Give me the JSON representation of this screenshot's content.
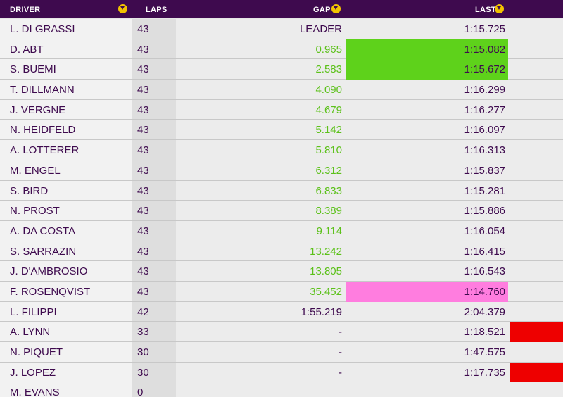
{
  "header": {
    "driver": "DRIVER",
    "laps": "LAPS",
    "gap": "GAP",
    "last": "LAST",
    "dropdown_icon": "chevron-down-circle-icon",
    "accent_color": "#3e0a4e",
    "icon_color": "#f2c300"
  },
  "colors": {
    "gap_green": "#5cc11a",
    "personal_best": "#5ed21b",
    "fastest_lap": "#ff7ddf",
    "retired": "#ee0000"
  },
  "rows": [
    {
      "driver": "L. DI GRASSI",
      "laps": "43",
      "gap": "LEADER",
      "last": "1:15.725",
      "gap_style": "plain",
      "last_highlight": "none",
      "flag": false
    },
    {
      "driver": "D. ABT",
      "laps": "43",
      "gap": "0.965",
      "last": "1:15.082",
      "gap_style": "green",
      "last_highlight": "lime",
      "flag": false
    },
    {
      "driver": "S. BUEMI",
      "laps": "43",
      "gap": "2.583",
      "last": "1:15.672",
      "gap_style": "green",
      "last_highlight": "lime",
      "flag": false
    },
    {
      "driver": "T. DILLMANN",
      "laps": "43",
      "gap": "4.090",
      "last": "1:16.299",
      "gap_style": "green",
      "last_highlight": "none",
      "flag": false
    },
    {
      "driver": "J. VERGNE",
      "laps": "43",
      "gap": "4.679",
      "last": "1:16.277",
      "gap_style": "green",
      "last_highlight": "none",
      "flag": false
    },
    {
      "driver": "N. HEIDFELD",
      "laps": "43",
      "gap": "5.142",
      "last": "1:16.097",
      "gap_style": "green",
      "last_highlight": "none",
      "flag": false
    },
    {
      "driver": "A. LOTTERER",
      "laps": "43",
      "gap": "5.810",
      "last": "1:16.313",
      "gap_style": "green",
      "last_highlight": "none",
      "flag": false
    },
    {
      "driver": "M. ENGEL",
      "laps": "43",
      "gap": "6.312",
      "last": "1:15.837",
      "gap_style": "green",
      "last_highlight": "none",
      "flag": false
    },
    {
      "driver": "S. BIRD",
      "laps": "43",
      "gap": "6.833",
      "last": "1:15.281",
      "gap_style": "green",
      "last_highlight": "none",
      "flag": false
    },
    {
      "driver": "N. PROST",
      "laps": "43",
      "gap": "8.389",
      "last": "1:15.886",
      "gap_style": "green",
      "last_highlight": "none",
      "flag": false
    },
    {
      "driver": "A. DA COSTA",
      "laps": "43",
      "gap": "9.114",
      "last": "1:16.054",
      "gap_style": "green",
      "last_highlight": "none",
      "flag": false
    },
    {
      "driver": "S. SARRAZIN",
      "laps": "43",
      "gap": "13.242",
      "last": "1:16.415",
      "gap_style": "green",
      "last_highlight": "none",
      "flag": false
    },
    {
      "driver": "J. D'AMBROSIO",
      "laps": "43",
      "gap": "13.805",
      "last": "1:16.543",
      "gap_style": "green",
      "last_highlight": "none",
      "flag": false
    },
    {
      "driver": "F. ROSENQVIST",
      "laps": "43",
      "gap": "35.452",
      "last": "1:14.760",
      "gap_style": "green",
      "last_highlight": "pink",
      "flag": false
    },
    {
      "driver": "L. FILIPPI",
      "laps": "42",
      "gap": "1:55.219",
      "last": "2:04.379",
      "gap_style": "plain",
      "last_highlight": "none",
      "flag": false
    },
    {
      "driver": "A. LYNN",
      "laps": "33",
      "gap": "-",
      "last": "1:18.521",
      "gap_style": "plain",
      "last_highlight": "none",
      "flag": true
    },
    {
      "driver": "N. PIQUET",
      "laps": "30",
      "gap": "-",
      "last": "1:47.575",
      "gap_style": "plain",
      "last_highlight": "none",
      "flag": false
    },
    {
      "driver": "J. LOPEZ",
      "laps": "30",
      "gap": "-",
      "last": "1:17.735",
      "gap_style": "plain",
      "last_highlight": "none",
      "flag": true
    },
    {
      "driver": "M. EVANS",
      "laps": "0",
      "gap": "",
      "last": "",
      "gap_style": "plain",
      "last_highlight": "none",
      "flag": false
    }
  ]
}
